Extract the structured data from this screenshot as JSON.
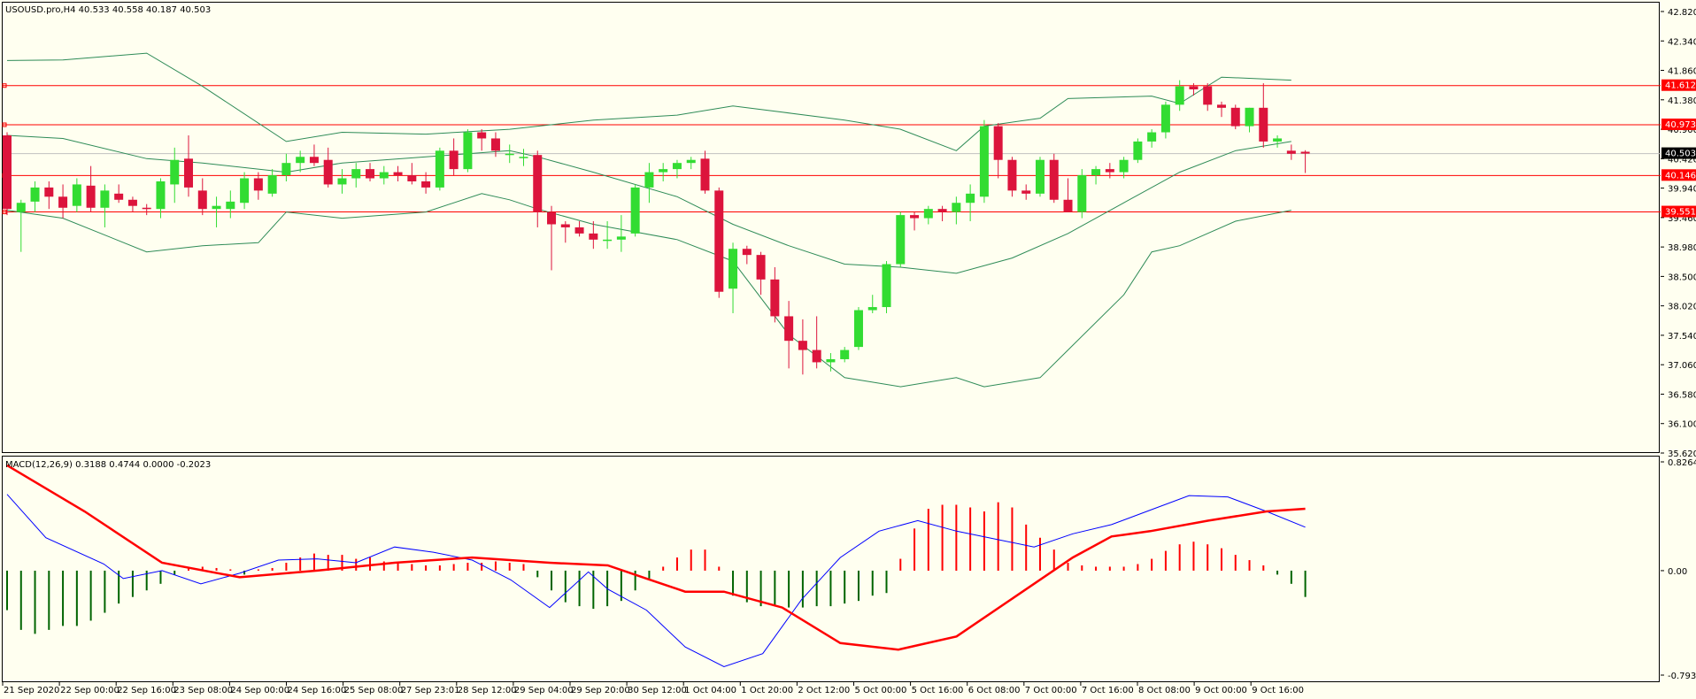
{
  "header": {
    "symbol_info": "USOUSD.pro,H4  40.533 40.558 40.187 40.503"
  },
  "macd_panel": {
    "label": "MACD(12,26,9) 0.3188 0.4744 0.0000 -0.2023"
  },
  "colors": {
    "background": "#fffff0",
    "bull": "#32dc32",
    "bear": "#dc143c",
    "bollinger": "#2e8b57",
    "level_line": "#ff0000",
    "macd_main": "#0000ff",
    "macd_signal": "#ff0000",
    "hist_pos": "#ff0000",
    "hist_neg": "#006400"
  },
  "chart_data": [
    {
      "type": "candlestick",
      "title": "USOUSD.pro,H4",
      "ylim": [
        35.62,
        42.82
      ],
      "yticks": [
        "42.820",
        "42.340",
        "41.860",
        "41.380",
        "40.900",
        "40.420",
        "39.940",
        "39.460",
        "38.980",
        "38.500",
        "38.020",
        "37.540",
        "37.060",
        "36.580",
        "36.100",
        "35.620"
      ],
      "xticks": [
        "21 Sep 2020",
        "22 Sep 00:00",
        "22 Sep 16:00",
        "23 Sep 08:00",
        "24 Sep 00:00",
        "24 Sep 16:00",
        "25 Sep 08:00",
        "27 Sep 23:01",
        "28 Sep 12:00",
        "29 Sep 04:00",
        "29 Sep 20:00",
        "30 Sep 12:00",
        "1 Oct 04:00",
        "1 Oct 20:00",
        "2 Oct 12:00",
        "5 Oct 00:00",
        "5 Oct 16:00",
        "6 Oct 08:00",
        "7 Oct 00:00",
        "7 Oct 16:00",
        "8 Oct 08:00",
        "9 Oct 00:00",
        "9 Oct 16:00"
      ],
      "current_price": "40.503",
      "levels": [
        {
          "value": 41.612,
          "label": "41.612"
        },
        {
          "value": 40.973,
          "label": "40.973"
        },
        {
          "value": 40.146,
          "label": "40.146"
        },
        {
          "value": 39.551,
          "label": "39.551"
        }
      ],
      "candles": [
        [
          40.8,
          40.85,
          39.5,
          39.6
        ],
        [
          39.55,
          39.75,
          38.9,
          39.7
        ],
        [
          39.72,
          40.05,
          39.55,
          39.95
        ],
        [
          39.95,
          40.05,
          39.6,
          39.8
        ],
        [
          39.8,
          40.0,
          39.45,
          39.62
        ],
        [
          39.65,
          40.1,
          39.55,
          40.0
        ],
        [
          39.98,
          40.3,
          39.55,
          39.62
        ],
        [
          39.62,
          40.0,
          39.3,
          39.9
        ],
        [
          39.85,
          40.0,
          39.7,
          39.75
        ],
        [
          39.75,
          39.8,
          39.55,
          39.65
        ],
        [
          39.62,
          39.68,
          39.5,
          39.6
        ],
        [
          39.6,
          40.1,
          39.45,
          40.05
        ],
        [
          40.0,
          40.6,
          39.7,
          40.4
        ],
        [
          40.42,
          40.8,
          39.8,
          39.95
        ],
        [
          39.9,
          40.1,
          39.5,
          39.6
        ],
        [
          39.6,
          39.8,
          39.3,
          39.65
        ],
        [
          39.6,
          39.9,
          39.45,
          39.72
        ],
        [
          39.7,
          40.2,
          39.6,
          40.1
        ],
        [
          40.1,
          40.2,
          39.75,
          39.9
        ],
        [
          39.85,
          40.25,
          39.8,
          40.15
        ],
        [
          40.15,
          40.5,
          40.05,
          40.35
        ],
        [
          40.35,
          40.55,
          40.2,
          40.45
        ],
        [
          40.45,
          40.65,
          40.3,
          40.35
        ],
        [
          40.4,
          40.6,
          39.95,
          40.0
        ],
        [
          40.0,
          40.25,
          39.85,
          40.1
        ],
        [
          40.1,
          40.35,
          39.95,
          40.25
        ],
        [
          40.25,
          40.35,
          40.05,
          40.1
        ],
        [
          40.1,
          40.3,
          40.0,
          40.2
        ],
        [
          40.2,
          40.3,
          40.05,
          40.15
        ],
        [
          40.15,
          40.35,
          40.0,
          40.05
        ],
        [
          40.05,
          40.2,
          39.85,
          39.95
        ],
        [
          39.95,
          40.6,
          39.9,
          40.55
        ],
        [
          40.55,
          40.75,
          40.15,
          40.25
        ],
        [
          40.25,
          40.9,
          40.2,
          40.85
        ],
        [
          40.85,
          40.9,
          40.55,
          40.75
        ],
        [
          40.75,
          40.85,
          40.45,
          40.55
        ],
        [
          40.5,
          40.65,
          40.35,
          40.5
        ],
        [
          40.45,
          40.58,
          40.3,
          40.45
        ],
        [
          40.48,
          40.55,
          39.3,
          39.55
        ],
        [
          39.55,
          39.65,
          38.6,
          39.35
        ],
        [
          39.35,
          39.4,
          39.05,
          39.3
        ],
        [
          39.3,
          39.4,
          39.15,
          39.2
        ],
        [
          39.2,
          39.4,
          38.95,
          39.1
        ],
        [
          39.1,
          39.4,
          38.95,
          39.1
        ],
        [
          39.1,
          39.5,
          38.9,
          39.15
        ],
        [
          39.2,
          40.0,
          39.15,
          39.95
        ],
        [
          39.95,
          40.35,
          39.7,
          40.2
        ],
        [
          40.2,
          40.35,
          40.05,
          40.25
        ],
        [
          40.25,
          40.4,
          40.1,
          40.35
        ],
        [
          40.35,
          40.45,
          40.25,
          40.4
        ],
        [
          40.42,
          40.55,
          39.85,
          39.9
        ],
        [
          39.9,
          39.95,
          38.15,
          38.25
        ],
        [
          38.3,
          39.05,
          37.9,
          38.95
        ],
        [
          38.95,
          39.0,
          38.7,
          38.85
        ],
        [
          38.85,
          38.9,
          38.2,
          38.45
        ],
        [
          38.45,
          38.65,
          37.75,
          37.85
        ],
        [
          37.85,
          38.1,
          37.0,
          37.45
        ],
        [
          37.45,
          37.8,
          36.9,
          37.3
        ],
        [
          37.3,
          37.85,
          37.0,
          37.1
        ],
        [
          37.1,
          37.25,
          36.95,
          37.15
        ],
        [
          37.15,
          37.35,
          37.1,
          37.3
        ],
        [
          37.35,
          38.0,
          37.3,
          37.95
        ],
        [
          37.95,
          38.2,
          37.9,
          38.0
        ],
        [
          38.0,
          38.75,
          37.9,
          38.7
        ],
        [
          38.7,
          39.55,
          38.65,
          39.5
        ],
        [
          39.5,
          39.55,
          39.25,
          39.45
        ],
        [
          39.45,
          39.65,
          39.35,
          39.6
        ],
        [
          39.6,
          39.65,
          39.4,
          39.55
        ],
        [
          39.55,
          39.8,
          39.35,
          39.7
        ],
        [
          39.7,
          40.0,
          39.4,
          39.85
        ],
        [
          39.8,
          41.05,
          39.7,
          40.95
        ],
        [
          40.95,
          41.0,
          40.1,
          40.4
        ],
        [
          40.4,
          40.45,
          39.8,
          39.9
        ],
        [
          39.9,
          40.0,
          39.75,
          39.85
        ],
        [
          39.85,
          40.45,
          39.8,
          40.4
        ],
        [
          40.4,
          40.5,
          39.7,
          39.75
        ],
        [
          39.75,
          40.1,
          39.55,
          39.55
        ],
        [
          39.55,
          40.25,
          39.45,
          40.15
        ],
        [
          40.15,
          40.3,
          40.0,
          40.25
        ],
        [
          40.25,
          40.35,
          40.1,
          40.2
        ],
        [
          40.2,
          40.45,
          40.1,
          40.4
        ],
        [
          40.4,
          40.75,
          40.35,
          40.7
        ],
        [
          40.7,
          40.9,
          40.6,
          40.85
        ],
        [
          40.85,
          41.35,
          40.75,
          41.3
        ],
        [
          41.3,
          41.7,
          41.2,
          41.6
        ],
        [
          41.6,
          41.65,
          41.45,
          41.55
        ],
        [
          41.6,
          41.65,
          41.2,
          41.3
        ],
        [
          41.3,
          41.35,
          41.1,
          41.25
        ],
        [
          41.25,
          41.3,
          40.9,
          40.95
        ],
        [
          40.95,
          41.25,
          40.85,
          41.25
        ],
        [
          41.25,
          41.65,
          40.6,
          40.7
        ],
        [
          40.7,
          40.8,
          40.6,
          40.75
        ],
        [
          40.55,
          40.65,
          40.4,
          40.5
        ],
        [
          40.533,
          40.558,
          40.187,
          40.503
        ]
      ],
      "bollinger": {
        "upper": [
          [
            0,
            42.02
          ],
          [
            4,
            42.03
          ],
          [
            10,
            42.14
          ],
          [
            14,
            41.6
          ],
          [
            20,
            40.7
          ],
          [
            24,
            40.85
          ],
          [
            30,
            40.82
          ],
          [
            36,
            40.9
          ],
          [
            42,
            41.05
          ],
          [
            48,
            41.13
          ],
          [
            52,
            41.28
          ],
          [
            60,
            41.05
          ],
          [
            64,
            40.9
          ],
          [
            68,
            40.55
          ],
          [
            70,
            40.95
          ],
          [
            74,
            41.08
          ],
          [
            76,
            41.4
          ],
          [
            82,
            41.44
          ],
          [
            84,
            41.32
          ],
          [
            87,
            41.75
          ],
          [
            92,
            41.7
          ]
        ],
        "middle": [
          [
            0,
            40.8
          ],
          [
            4,
            40.75
          ],
          [
            10,
            40.42
          ],
          [
            14,
            40.35
          ],
          [
            20,
            40.2
          ],
          [
            24,
            40.35
          ],
          [
            30,
            40.45
          ],
          [
            36,
            40.55
          ],
          [
            38,
            40.45
          ],
          [
            42,
            40.2
          ],
          [
            48,
            39.8
          ],
          [
            52,
            39.35
          ],
          [
            56,
            39.0
          ],
          [
            60,
            38.7
          ],
          [
            64,
            38.65
          ],
          [
            68,
            38.55
          ],
          [
            72,
            38.8
          ],
          [
            76,
            39.2
          ],
          [
            80,
            39.7
          ],
          [
            84,
            40.2
          ],
          [
            88,
            40.55
          ],
          [
            92,
            40.7
          ]
        ],
        "lower": [
          [
            0,
            39.58
          ],
          [
            4,
            39.45
          ],
          [
            10,
            38.9
          ],
          [
            14,
            39.0
          ],
          [
            18,
            39.05
          ],
          [
            20,
            39.55
          ],
          [
            24,
            39.45
          ],
          [
            30,
            39.55
          ],
          [
            34,
            39.85
          ],
          [
            36,
            39.75
          ],
          [
            38,
            39.6
          ],
          [
            42,
            39.35
          ],
          [
            48,
            39.1
          ],
          [
            52,
            38.75
          ],
          [
            56,
            37.55
          ],
          [
            60,
            36.85
          ],
          [
            64,
            36.7
          ],
          [
            68,
            36.85
          ],
          [
            70,
            36.7
          ],
          [
            74,
            36.85
          ],
          [
            76,
            37.3
          ],
          [
            80,
            38.2
          ],
          [
            82,
            38.9
          ],
          [
            84,
            39.0
          ],
          [
            88,
            39.4
          ],
          [
            92,
            39.58
          ]
        ]
      }
    },
    {
      "type": "macd",
      "title": "MACD(12,26,9)",
      "ylim": [
        -0.7936,
        0.8264
      ],
      "yticks": [
        "0.8264",
        "0.00",
        "-0.7936"
      ],
      "histogram": [
        -0.3,
        -0.45,
        -0.48,
        -0.45,
        -0.42,
        -0.42,
        -0.38,
        -0.32,
        -0.25,
        -0.2,
        -0.15,
        -0.1,
        -0.03,
        0.02,
        0.03,
        0.02,
        0.01,
        -0.03,
        0.01,
        0.02,
        0.06,
        0.1,
        0.13,
        0.12,
        0.12,
        0.09,
        0.1,
        0.07,
        0.06,
        0.05,
        0.04,
        0.04,
        0.05,
        0.06,
        0.06,
        0.07,
        0.06,
        0.05,
        -0.05,
        -0.15,
        -0.24,
        -0.27,
        -0.29,
        -0.27,
        -0.23,
        -0.15,
        -0.06,
        0.03,
        0.1,
        0.16,
        0.16,
        0.03,
        -0.19,
        -0.24,
        -0.27,
        -0.27,
        -0.28,
        -0.28,
        -0.27,
        -0.27,
        -0.25,
        -0.23,
        -0.19,
        -0.17,
        0.09,
        0.32,
        0.47,
        0.5,
        0.5,
        0.48,
        0.45,
        0.52,
        0.48,
        0.35,
        0.25,
        0.16,
        0.06,
        0.04,
        0.03,
        0.03,
        0.03,
        0.05,
        0.09,
        0.15,
        0.2,
        0.22,
        0.2,
        0.17,
        0.12,
        0.08,
        0.04,
        -0.03,
        -0.1,
        -0.2
      ],
      "main": [
        [
          0,
          0.58
        ],
        [
          4,
          0.25
        ],
        [
          10,
          0.05
        ],
        [
          12,
          -0.06
        ],
        [
          16,
          0.0
        ],
        [
          20,
          -0.1
        ],
        [
          24,
          -0.02
        ],
        [
          28,
          0.08
        ],
        [
          32,
          0.09
        ],
        [
          36,
          0.06
        ],
        [
          40,
          0.18
        ],
        [
          44,
          0.14
        ],
        [
          48,
          0.08
        ],
        [
          52,
          -0.07
        ],
        [
          56,
          -0.28
        ],
        [
          60,
          -0.01
        ],
        [
          62,
          -0.14
        ],
        [
          66,
          -0.3
        ],
        [
          70,
          -0.58
        ],
        [
          74,
          -0.73
        ],
        [
          78,
          -0.63
        ],
        [
          82,
          -0.22
        ],
        [
          86,
          0.1
        ],
        [
          90,
          0.3
        ],
        [
          94,
          0.38
        ],
        [
          98,
          0.3
        ],
        [
          102,
          0.24
        ],
        [
          106,
          0.18
        ],
        [
          110,
          0.28
        ],
        [
          114,
          0.35
        ],
        [
          118,
          0.46
        ],
        [
          122,
          0.57
        ],
        [
          126,
          0.56
        ],
        [
          130,
          0.45
        ],
        [
          134,
          0.33
        ]
      ],
      "signal": [
        [
          0,
          0.8
        ],
        [
          8,
          0.45
        ],
        [
          16,
          0.06
        ],
        [
          24,
          -0.05
        ],
        [
          32,
          0.0
        ],
        [
          40,
          0.06
        ],
        [
          48,
          0.1
        ],
        [
          56,
          0.06
        ],
        [
          62,
          0.04
        ],
        [
          66,
          -0.06
        ],
        [
          70,
          -0.16
        ],
        [
          74,
          -0.16
        ],
        [
          80,
          -0.28
        ],
        [
          86,
          -0.55
        ],
        [
          92,
          -0.6
        ],
        [
          98,
          -0.5
        ],
        [
          104,
          -0.2
        ],
        [
          110,
          0.1
        ],
        [
          114,
          0.26
        ],
        [
          118,
          0.3
        ],
        [
          124,
          0.38
        ],
        [
          130,
          0.45
        ],
        [
          134,
          0.47
        ]
      ]
    }
  ]
}
